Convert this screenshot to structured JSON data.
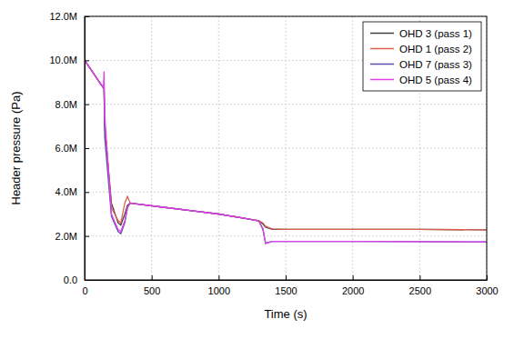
{
  "chart_data": {
    "type": "line",
    "x_label": "Time (s)",
    "y_label": "Header pressure (Pa)",
    "x": [
      0,
      50,
      100,
      140,
      145,
      150,
      200,
      250,
      270,
      300,
      320,
      340,
      400,
      600,
      800,
      1000,
      1200,
      1300,
      1330,
      1350,
      1400,
      1500,
      2000,
      2500,
      3000
    ],
    "series": [
      {
        "name": "OHD 3 (pass 1)",
        "color": "#404040",
        "values": [
          10000000,
          9550000,
          9100000,
          8750000,
          8700000,
          7000000,
          3500000,
          2600000,
          2500000,
          3000000,
          3400000,
          3500000,
          3450000,
          3300000,
          3150000,
          3000000,
          2800000,
          2700000,
          2550000,
          2400000,
          2300000,
          2300000,
          2300000,
          2300000,
          2280000
        ]
      },
      {
        "name": "OHD 1 (pass 2)",
        "color": "#e0604f",
        "values": [
          10000000,
          9550000,
          9100000,
          8750000,
          8700000,
          7000000,
          3300000,
          2700000,
          2600000,
          3500000,
          3800000,
          3500000,
          3450000,
          3300000,
          3150000,
          3000000,
          2800000,
          2700000,
          2600000,
          2450000,
          2320000,
          2300000,
          2300000,
          2300000,
          2280000
        ]
      },
      {
        "name": "OHD 7 (pass 3)",
        "color": "#5a4fb0",
        "values": [
          10000000,
          9550000,
          9100000,
          8750000,
          8700000,
          6500000,
          2900000,
          2200000,
          2100000,
          2600000,
          3300000,
          3500000,
          3450000,
          3300000,
          3150000,
          3000000,
          2800000,
          2680000,
          2300000,
          1680000,
          1750000,
          1750000,
          1750000,
          1740000,
          1730000
        ]
      },
      {
        "name": "OHD 5 (pass 4)",
        "color": "#e040e8",
        "values": [
          10000000,
          9550000,
          9100000,
          8750000,
          9500000,
          7500000,
          3000000,
          2300000,
          2200000,
          2700000,
          3300000,
          3500000,
          3450000,
          3300000,
          3150000,
          3000000,
          2800000,
          2680000,
          2350000,
          1650000,
          1750000,
          1750000,
          1750000,
          1740000,
          1730000
        ]
      }
    ],
    "xlim": [
      0,
      3000
    ],
    "xticks": [
      0,
      500,
      1000,
      1500,
      2000,
      2500,
      3000
    ],
    "ylim": [
      0,
      12000000
    ],
    "yticks": [
      {
        "value": 0,
        "label": "0.0"
      },
      {
        "value": 2000000,
        "label": "2.0M"
      },
      {
        "value": 4000000,
        "label": "4.0M"
      },
      {
        "value": 6000000,
        "label": "6.0M"
      },
      {
        "value": 8000000,
        "label": "8.0M"
      },
      {
        "value": 10000000,
        "label": "10.0M"
      },
      {
        "value": 12000000,
        "label": "12.0M"
      }
    ],
    "grid": true,
    "legend": "upper right"
  }
}
